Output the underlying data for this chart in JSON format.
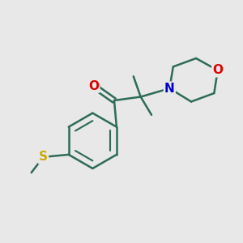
{
  "background_color": "#e8e8e8",
  "bond_color": "#2d6b58",
  "bond_width": 1.8,
  "atom_colors": {
    "O": "#dd0000",
    "N": "#0000cc",
    "S": "#ccaa00",
    "C": "#000000"
  },
  "font_size_atom": 11,
  "fig_size": [
    3.0,
    3.0
  ],
  "dpi": 100,
  "xlim": [
    0,
    10
  ],
  "ylim": [
    0,
    10
  ]
}
